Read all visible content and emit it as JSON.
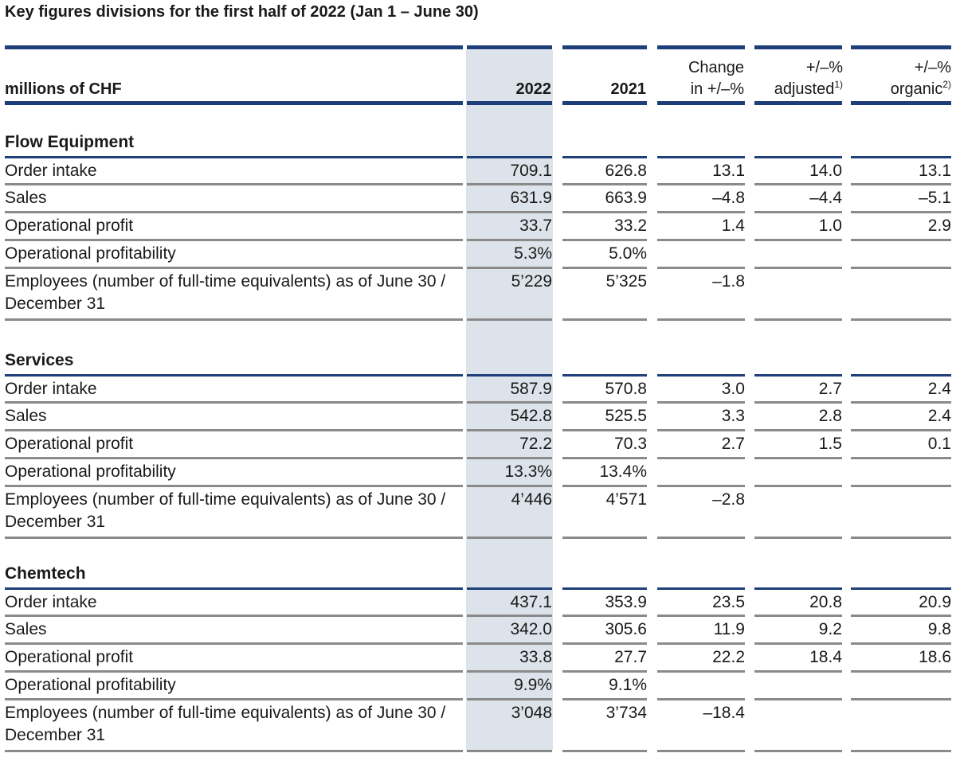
{
  "title": "Key figures divisions for the first half of 2022 (Jan 1 – June 30)",
  "header": {
    "unit": "millions of CHF",
    "col_2022": "2022",
    "col_2021": "2021",
    "change_l1": "Change",
    "change_l2": "in +/–%",
    "adjusted_l1": "+/–%",
    "adjusted_l2": "adjusted",
    "adjusted_sup": "1)",
    "organic_l1": "+/–%",
    "organic_l2": "organic",
    "organic_sup": "2)"
  },
  "sections": [
    {
      "name": "Flow Equipment",
      "rows": [
        {
          "label": "Order intake",
          "v2022": "709.1",
          "v2021": "626.8",
          "change": "13.1",
          "adjusted": "14.0",
          "organic": "13.1"
        },
        {
          "label": "Sales",
          "v2022": "631.9",
          "v2021": "663.9",
          "change": "–4.8",
          "adjusted": "–4.4",
          "organic": "–5.1"
        },
        {
          "label": "Operational profit",
          "v2022": "33.7",
          "v2021": "33.2",
          "change": "1.4",
          "adjusted": "1.0",
          "organic": "2.9"
        },
        {
          "label": "Operational profitability",
          "v2022": "5.3%",
          "v2021": "5.0%",
          "change": "",
          "adjusted": "",
          "organic": ""
        },
        {
          "label": "Employees (number of full-time equivalents) as of June 30 / December 31",
          "v2022": "5’229",
          "v2021": "5’325",
          "change": "–1.8",
          "adjusted": "",
          "organic": ""
        }
      ]
    },
    {
      "name": "Services",
      "rows": [
        {
          "label": "Order intake",
          "v2022": "587.9",
          "v2021": "570.8",
          "change": "3.0",
          "adjusted": "2.7",
          "organic": "2.4"
        },
        {
          "label": "Sales",
          "v2022": "542.8",
          "v2021": "525.5",
          "change": "3.3",
          "adjusted": "2.8",
          "organic": "2.4"
        },
        {
          "label": "Operational profit",
          "v2022": "72.2",
          "v2021": "70.3",
          "change": "2.7",
          "adjusted": "1.5",
          "organic": "0.1"
        },
        {
          "label": "Operational profitability",
          "v2022": "13.3%",
          "v2021": "13.4%",
          "change": "",
          "adjusted": "",
          "organic": ""
        },
        {
          "label": "Employees (number of full-time equivalents) as of June 30 / December 31",
          "v2022": "4’446",
          "v2021": "4’571",
          "change": "–2.8",
          "adjusted": "",
          "organic": ""
        }
      ]
    },
    {
      "name": "Chemtech",
      "rows": [
        {
          "label": "Order intake",
          "v2022": "437.1",
          "v2021": "353.9",
          "change": "23.5",
          "adjusted": "20.8",
          "organic": "20.9"
        },
        {
          "label": "Sales",
          "v2022": "342.0",
          "v2021": "305.6",
          "change": "11.9",
          "adjusted": "9.2",
          "organic": "9.8"
        },
        {
          "label": "Operational profit",
          "v2022": "33.8",
          "v2021": "27.7",
          "change": "22.2",
          "adjusted": "18.4",
          "organic": "18.6"
        },
        {
          "label": "Operational profitability",
          "v2022": "9.9%",
          "v2021": "9.1%",
          "change": "",
          "adjusted": "",
          "organic": ""
        },
        {
          "label": "Employees (number of full-time equivalents) as of June 30 / December 31",
          "v2022": "3’048",
          "v2021": "3’734",
          "change": "–18.4",
          "adjusted": "",
          "organic": ""
        }
      ]
    }
  ]
}
